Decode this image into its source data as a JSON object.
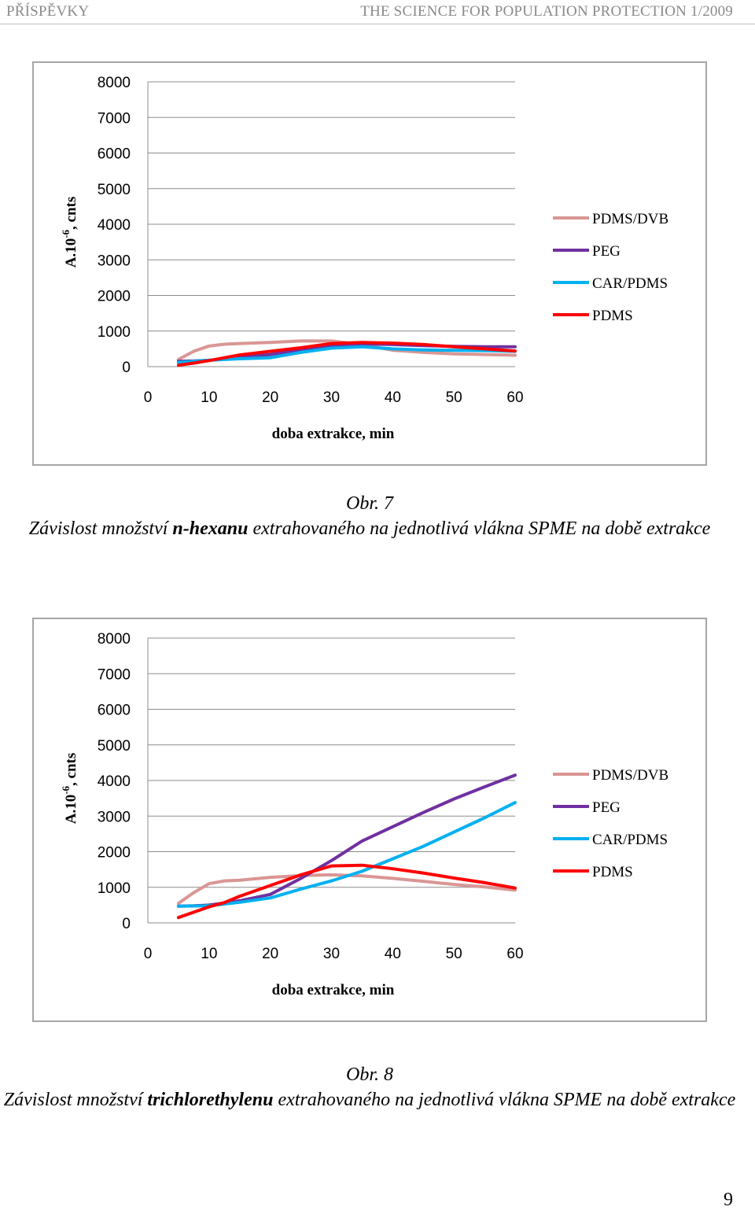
{
  "header": {
    "left": "PŘÍSPĚVKY",
    "right": "THE SCIENCE FOR POPULATION PROTECTION 1/2009"
  },
  "figures": [
    {
      "caption": {
        "label": "Obr. 7",
        "prefix": "Závislost množství ",
        "bold": "n-hexanu",
        "suffix": " extrahovaného na jednotlivá vlákna SPME na době extrakce"
      }
    },
    {
      "caption": {
        "label": "Obr. 8",
        "prefix": "Závislost množství ",
        "bold": "trichlorethylenu",
        "suffix": " extrahovaného na jednotlivá vlákna SPME na době extrakce"
      }
    }
  ],
  "page_number": "9",
  "chart_data": [
    {
      "type": "line",
      "xlabel": "doba extrakce, min",
      "ylabel": "A.10-6, cnts",
      "ylabel_parts": {
        "base": "A.10",
        "exp": "-6",
        "rest": ", cnts"
      },
      "xlim": [
        0,
        60
      ],
      "ylim": [
        0,
        8000
      ],
      "xticks": [
        "0",
        "10",
        "20",
        "30",
        "40",
        "50",
        "60"
      ],
      "yticks": [
        "0",
        "1000",
        "2000",
        "3000",
        "4000",
        "5000",
        "6000",
        "7000",
        "8000"
      ],
      "grid": true,
      "legend_position": "right",
      "x": [
        5,
        7.5,
        10,
        12.5,
        15,
        20,
        25,
        30,
        35,
        40,
        45,
        50,
        55,
        60
      ],
      "series": [
        {
          "name": "PDMS/DVB",
          "color": "#d99694",
          "values": [
            200,
            430,
            580,
            630,
            650,
            680,
            720,
            720,
            620,
            460,
            400,
            360,
            340,
            320
          ]
        },
        {
          "name": "PEG",
          "color": "#7030a0",
          "values": [
            150,
            160,
            180,
            210,
            260,
            340,
            480,
            600,
            640,
            620,
            590,
            570,
            560,
            560
          ]
        },
        {
          "name": "CAR/PDMS",
          "color": "#00b0f0",
          "values": [
            120,
            150,
            180,
            200,
            220,
            250,
            400,
            520,
            560,
            500,
            470,
            460,
            450,
            430
          ]
        },
        {
          "name": "PDMS",
          "color": "#ff0000",
          "values": [
            40,
            100,
            170,
            250,
            330,
            430,
            530,
            650,
            680,
            660,
            620,
            560,
            500,
            440
          ]
        }
      ]
    },
    {
      "type": "line",
      "xlabel": "doba extrakce, min",
      "ylabel": "A.10-6, cnts",
      "ylabel_parts": {
        "base": "A.10",
        "exp": "-6",
        "rest": ", cnts"
      },
      "xlim": [
        0,
        60
      ],
      "ylim": [
        0,
        8000
      ],
      "xticks": [
        "0",
        "10",
        "20",
        "30",
        "40",
        "50",
        "60"
      ],
      "yticks": [
        "0",
        "1000",
        "2000",
        "3000",
        "4000",
        "5000",
        "6000",
        "7000",
        "8000"
      ],
      "grid": true,
      "legend_position": "right",
      "x": [
        5,
        7.5,
        10,
        12.5,
        15,
        20,
        25,
        30,
        35,
        40,
        45,
        50,
        55,
        60
      ],
      "series": [
        {
          "name": "PDMS/DVB",
          "color": "#d99694",
          "values": [
            550,
            850,
            1100,
            1180,
            1200,
            1280,
            1330,
            1350,
            1320,
            1250,
            1170,
            1080,
            1010,
            920
          ]
        },
        {
          "name": "PEG",
          "color": "#7030a0",
          "values": [
            470,
            480,
            500,
            560,
            620,
            800,
            1250,
            1750,
            2300,
            2700,
            3100,
            3480,
            3820,
            4150
          ]
        },
        {
          "name": "CAR/PDMS",
          "color": "#00b0f0",
          "values": [
            470,
            475,
            480,
            530,
            580,
            700,
            950,
            1180,
            1450,
            1800,
            2150,
            2550,
            2950,
            3380
          ]
        },
        {
          "name": "PDMS",
          "color": "#ff0000",
          "values": [
            150,
            300,
            450,
            570,
            750,
            1050,
            1350,
            1600,
            1620,
            1520,
            1400,
            1260,
            1130,
            980
          ]
        }
      ]
    }
  ]
}
